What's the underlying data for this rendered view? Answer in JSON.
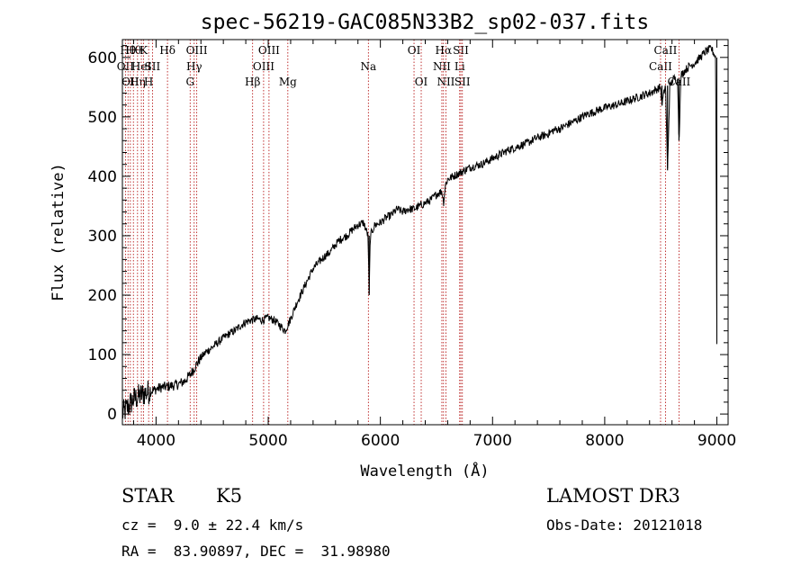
{
  "chart_data": {
    "type": "line",
    "title": "spec-56219-GAC085N33B2_sp02-037.fits",
    "xlabel": "Wavelength (Å)",
    "ylabel": "Flux (relative)",
    "xlim": [
      3700,
      9100
    ],
    "ylim": [
      -18,
      630
    ],
    "xticks": [
      "4000",
      "5000",
      "6000",
      "7000",
      "8000",
      "9000"
    ],
    "yticks": [
      "0",
      "100",
      "200",
      "300",
      "400",
      "500",
      "600"
    ],
    "series": [
      {
        "name": "flux",
        "x": [
          3700,
          3760,
          3800,
          3850,
          3900,
          3950,
          4000,
          4050,
          4100,
          4150,
          4200,
          4250,
          4300,
          4350,
          4400,
          4450,
          4500,
          4550,
          4600,
          4650,
          4700,
          4750,
          4800,
          4850,
          4900,
          4950,
          5000,
          5050,
          5100,
          5150,
          5200,
          5250,
          5300,
          5350,
          5400,
          5450,
          5500,
          5550,
          5600,
          5650,
          5700,
          5750,
          5800,
          5850,
          5890,
          5900,
          5910,
          5950,
          6000,
          6050,
          6100,
          6150,
          6200,
          6250,
          6300,
          6350,
          6400,
          6450,
          6500,
          6550,
          6563,
          6580,
          6600,
          6650,
          6700,
          6750,
          6800,
          6850,
          6900,
          6950,
          7000,
          7050,
          7100,
          7150,
          7200,
          7250,
          7300,
          7350,
          7400,
          7450,
          7500,
          7550,
          7600,
          7650,
          7700,
          7750,
          7800,
          7850,
          7900,
          7950,
          8000,
          8050,
          8100,
          8150,
          8200,
          8250,
          8300,
          8350,
          8400,
          8450,
          8498,
          8510,
          8542,
          8560,
          8580,
          8600,
          8620,
          8650,
          8662,
          8680,
          8700,
          8750,
          8800,
          8850,
          8900,
          8950,
          8990,
          9000
        ],
        "y": [
          0,
          15,
          25,
          30,
          35,
          38,
          42,
          45,
          46,
          48,
          50,
          55,
          65,
          80,
          95,
          105,
          112,
          120,
          128,
          135,
          140,
          148,
          155,
          158,
          160,
          158,
          162,
          158,
          150,
          140,
          160,
          185,
          205,
          225,
          245,
          255,
          265,
          272,
          285,
          295,
          300,
          310,
          318,
          322,
          300,
          200,
          300,
          318,
          322,
          330,
          335,
          345,
          340,
          345,
          345,
          350,
          355,
          360,
          370,
          375,
          355,
          385,
          395,
          400,
          405,
          410,
          415,
          418,
          420,
          425,
          430,
          435,
          440,
          445,
          448,
          452,
          455,
          460,
          465,
          468,
          472,
          478,
          480,
          485,
          490,
          495,
          500,
          505,
          508,
          512,
          515,
          518,
          520,
          523,
          526,
          530,
          533,
          537,
          540,
          545,
          550,
          520,
          555,
          410,
          550,
          560,
          565,
          560,
          460,
          570,
          575,
          585,
          590,
          600,
          610,
          615,
          600,
          120
        ]
      }
    ],
    "lines": [
      {
        "x": 3727,
        "row": 1,
        "label": "OII"
      },
      {
        "x": 3750,
        "row": 0,
        "label": "Hθ"
      },
      {
        "x": 3771,
        "row": 2,
        "label": "OII"
      },
      {
        "x": 3798,
        "row": 0,
        "label": "Hθ"
      },
      {
        "x": 3835,
        "row": 2,
        "label": "Hη"
      },
      {
        "x": 3869,
        "row": 1,
        "label": "HeI"
      },
      {
        "x": 3889,
        "row": 0,
        "label": "K"
      },
      {
        "x": 3934,
        "row": 2,
        "label": "H"
      },
      {
        "x": 3968,
        "row": 1,
        "label": "SII"
      },
      {
        "x": 4102,
        "row": 0,
        "label": "Hδ"
      },
      {
        "x": 4304,
        "row": 2,
        "label": "G"
      },
      {
        "x": 4340,
        "row": 1,
        "label": "Hγ"
      },
      {
        "x": 4363,
        "row": 0,
        "label": "OIII"
      },
      {
        "x": 4861,
        "row": 2,
        "label": "Hβ"
      },
      {
        "x": 4959,
        "row": 1,
        "label": "OIII"
      },
      {
        "x": 5007,
        "row": 0,
        "label": "OIII"
      },
      {
        "x": 5175,
        "row": 2,
        "label": "Mg"
      },
      {
        "x": 5893,
        "row": 1,
        "label": "Na"
      },
      {
        "x": 6300,
        "row": 0,
        "label": "OI"
      },
      {
        "x": 6364,
        "row": 2,
        "label": "OI"
      },
      {
        "x": 6548,
        "row": 1,
        "label": "NII"
      },
      {
        "x": 6563,
        "row": 0,
        "label": "Hα"
      },
      {
        "x": 6584,
        "row": 2,
        "label": "NII"
      },
      {
        "x": 6707,
        "row": 1,
        "label": "Li"
      },
      {
        "x": 6717,
        "row": 0,
        "label": "SII"
      },
      {
        "x": 6731,
        "row": 2,
        "label": "SII"
      },
      {
        "x": 8498,
        "row": 1,
        "label": "CaII"
      },
      {
        "x": 8542,
        "row": 0,
        "label": "CaII"
      },
      {
        "x": 8662,
        "row": 2,
        "label": "CaII"
      }
    ]
  },
  "info": {
    "class": "STAR",
    "subclass": "K5",
    "survey": "LAMOST DR3",
    "redshift": "cz =  9.0 ± 22.4 km/s",
    "obs_date": "Obs-Date: 20121018",
    "coords": "RA =  83.90897, DEC =  31.98980"
  }
}
